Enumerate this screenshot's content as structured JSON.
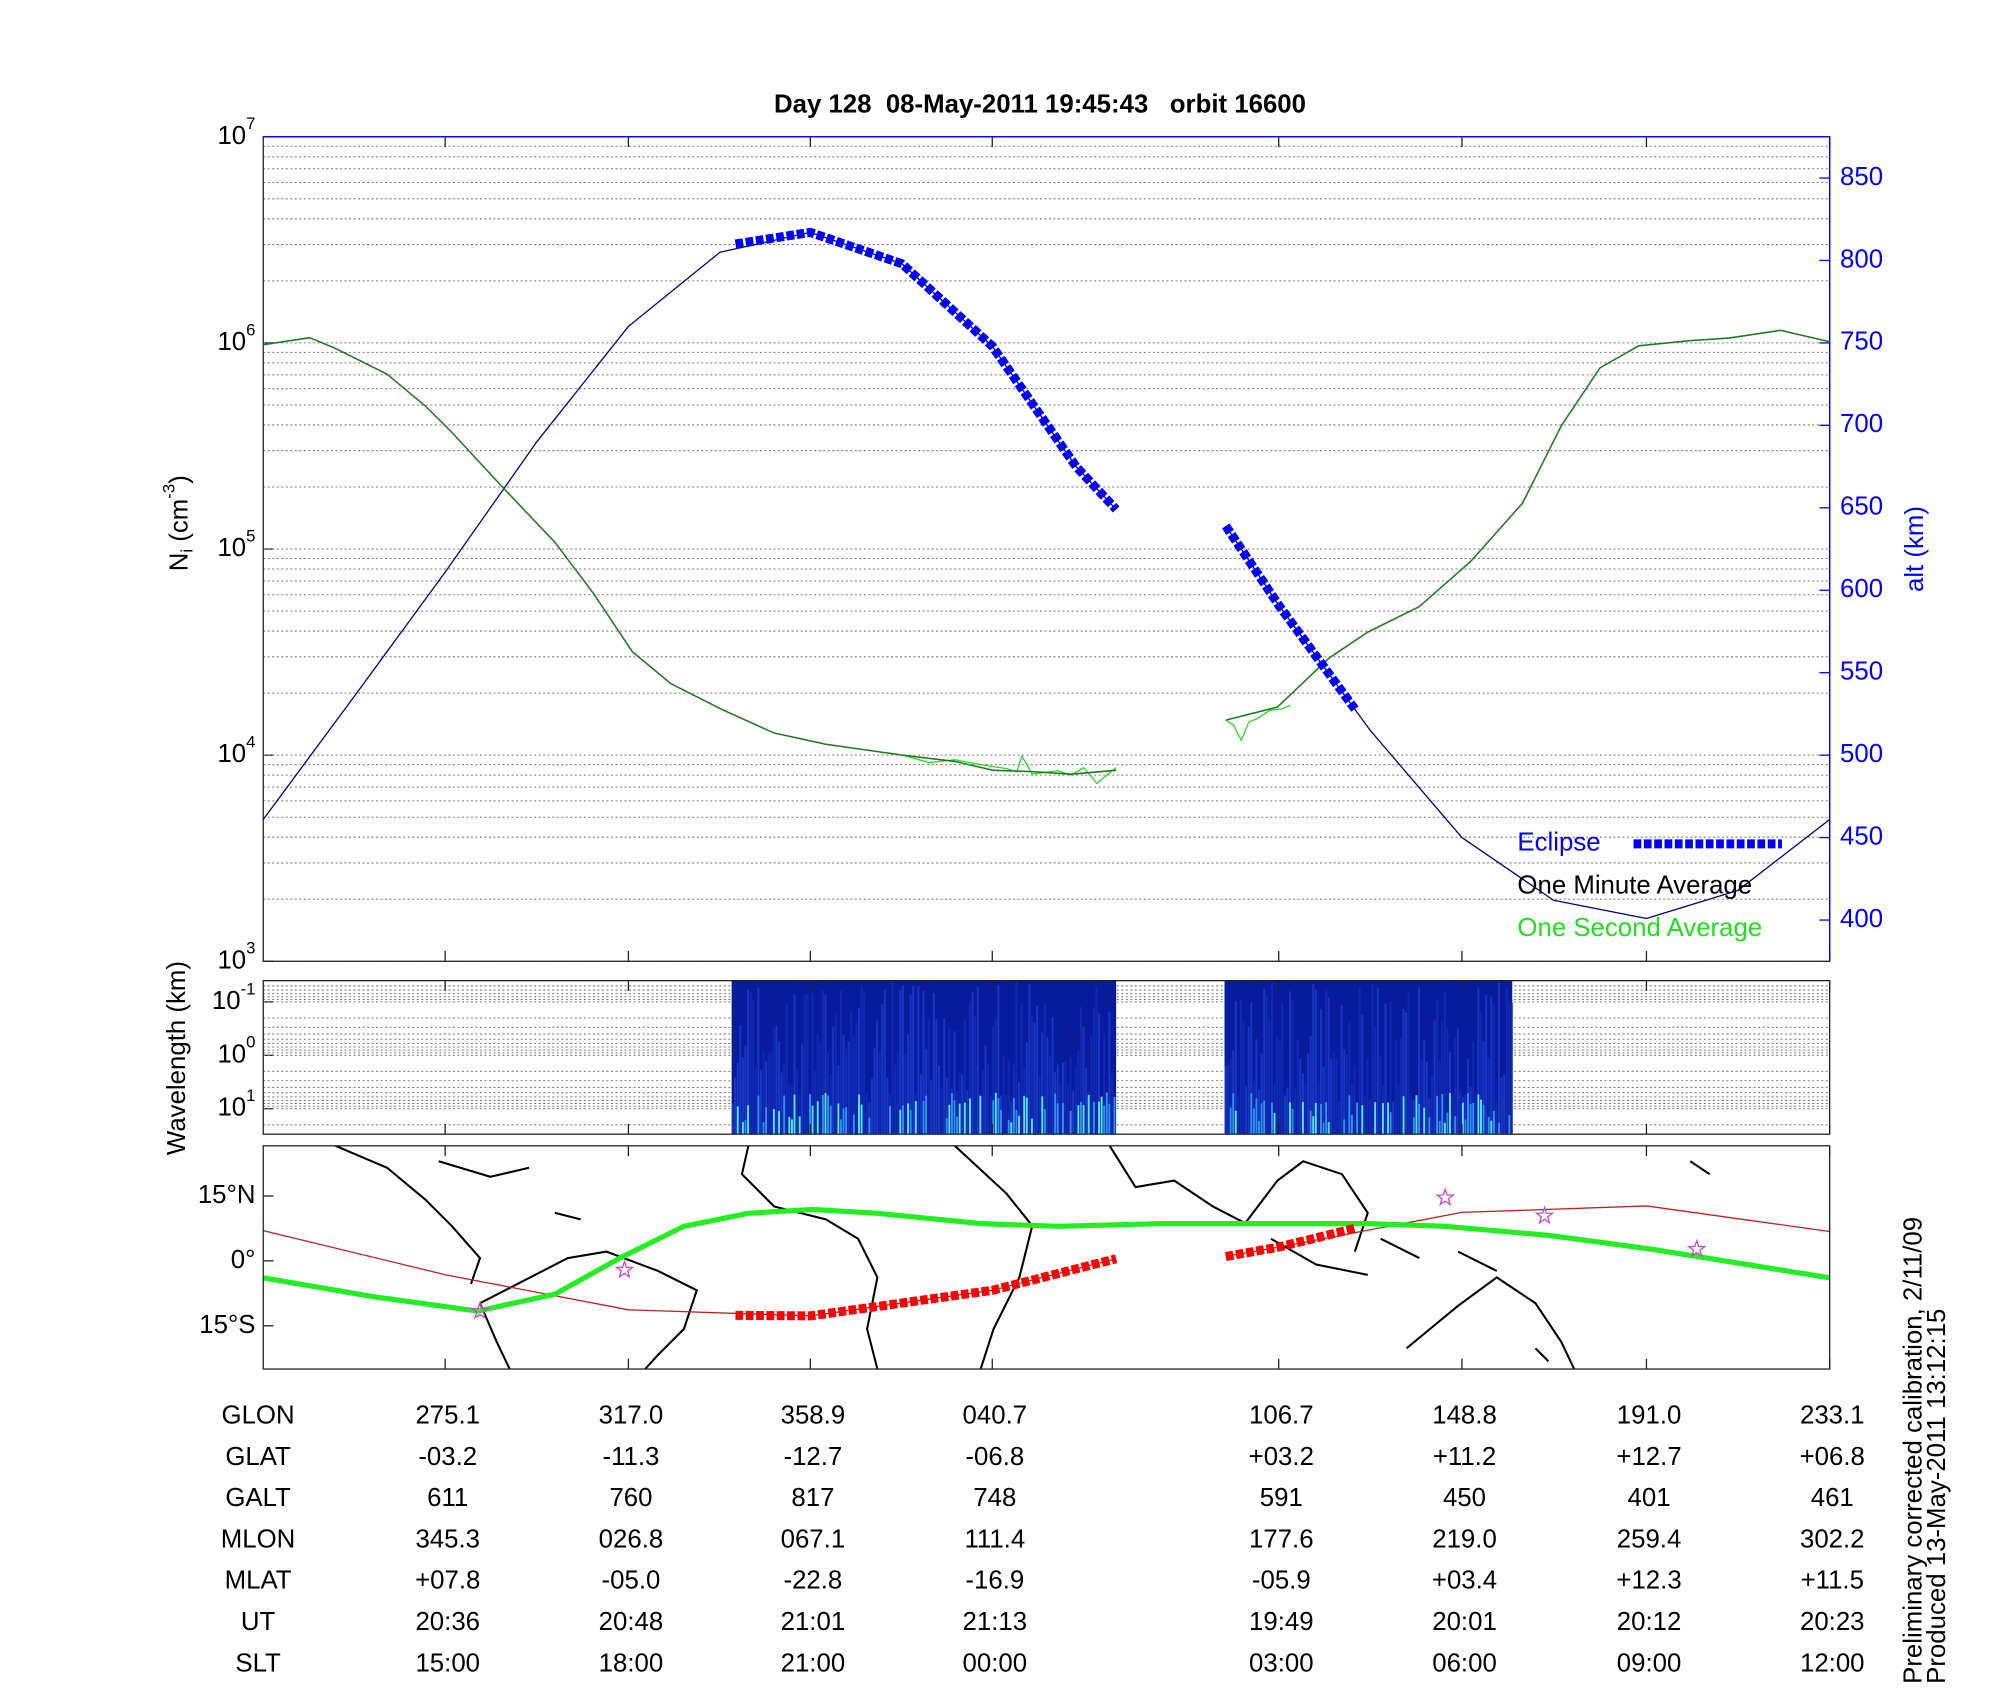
{
  "chart_data": [
    {
      "type": "line",
      "title": "Day 128  08-May-2011 19:45:43   orbit 16600",
      "ylabel": {
        "text": "N",
        "sub": "i",
        "unit": " (cm",
        "sup": "-3",
        "end": ")"
      },
      "y2label": "alt (km)",
      "log": true,
      "grid": true,
      "legend": "lower right",
      "xlim": [
        0,
        1214
      ],
      "xticks": [
        141,
        283,
        424,
        565,
        787,
        929,
        1072,
        1214
      ],
      "ylim": [
        1000,
        10000000
      ],
      "yticks": [
        {
          "value": 1000,
          "label": "10",
          "exponent": "3"
        },
        {
          "value": 10000,
          "label": "10",
          "exponent": "4"
        },
        {
          "value": 100000,
          "label": "10",
          "exponent": "5"
        },
        {
          "value": 1000000,
          "label": "10",
          "exponent": "6"
        },
        {
          "value": 10000000,
          "label": "10",
          "exponent": "7"
        }
      ],
      "y2lim": [
        375,
        875
      ],
      "y2ticks": [
        400,
        450,
        500,
        550,
        600,
        650,
        700,
        750,
        800,
        850
      ],
      "y2color": "#0000ff",
      "series": [
        {
          "name": "Eclipse",
          "color": "#0000ff",
          "text_color": "#0000ff",
          "style": "dashed",
          "linewidth": 7,
          "axis": "y2",
          "x": [
            366,
            424,
            495,
            565,
            630,
            661,
            700,
            746,
            787,
            846
          ],
          "values": [
            810,
            817,
            798,
            748,
            675,
            649,
            null,
            639,
            591,
            528
          ]
        },
        {
          "name": "One Minute Average",
          "color": "#1f7a1f",
          "text_color": "#000000",
          "linewidth": 1.2,
          "x": [
            0,
            36,
            56,
            96,
            126,
            146,
            186,
            226,
            256,
            286,
            316,
            356,
            396,
            436,
            496,
            536,
            566,
            596,
            626,
            661,
            700,
            746,
            786,
            826,
            856,
            896,
            936,
            976,
            1006,
            1036,
            1066,
            1106,
            1136,
            1176,
            1214
          ],
          "values": [
            980000,
            1060000,
            940000,
            705000,
            492000,
            369000,
            198000,
            108000,
            60800,
            31800,
            22200,
            16600,
            12800,
            11300,
            10000,
            9330,
            8440,
            8320,
            8090,
            8440,
            null,
            14800,
            17100,
            29600,
            39500,
            52600,
            87300,
            167000,
            396000,
            757000,
            968000,
            1026000,
            1056000,
            1151000,
            1012000
          ]
        },
        {
          "name": "One Second Average",
          "color": "#22dd22",
          "text_color": "#22dd22",
          "linewidth": 1,
          "x": [
            496,
            516,
            536,
            556,
            576,
            584,
            588,
            596,
            616,
            626,
            636,
            646,
            656,
            661,
            700,
            746,
            752,
            758,
            764,
            770,
            780,
            790,
            796
          ],
          "values": [
            10000,
            9200,
            9500,
            9000,
            8600,
            8300,
            9900,
            8100,
            8400,
            8000,
            8700,
            7300,
            8200,
            8700,
            null,
            14800,
            14000,
            11800,
            14500,
            15000,
            16500,
            16800,
            17500
          ]
        },
        {
          "color": "#00008b",
          "linewidth": 1,
          "axis": "y2",
          "x": [
            0,
            70,
            141,
            212,
            283,
            354,
            424,
            495,
            565,
            630,
            661,
            700,
            746,
            787,
            858,
            929,
            1000,
            1072,
            1143,
            1214
          ],
          "values": [
            461,
            535,
            611,
            690,
            760,
            805,
            817,
            798,
            748,
            675,
            649,
            null,
            639,
            591,
            515,
            450,
            412,
            401,
            418,
            461
          ]
        }
      ]
    },
    {
      "type": "spectrogram",
      "ylabel": "Wavelength (km)",
      "log": true,
      "grid": true,
      "xlim": [
        0,
        1214
      ],
      "xticks": [
        141,
        283,
        424,
        565,
        787,
        929,
        1072,
        1214
      ],
      "ylim": [
        30,
        0.04
      ],
      "yticks": [
        {
          "value": 0.1,
          "label": "10",
          "exponent": "-1"
        },
        {
          "value": 1,
          "label": "10",
          "exponent": "0"
        },
        {
          "value": 10,
          "label": "10",
          "exponent": "1"
        }
      ],
      "x_ranges": [
        [
          363,
          661
        ],
        [
          745,
          968
        ]
      ]
    },
    {
      "type": "map",
      "xlim": [
        0,
        1214
      ],
      "xticks": [
        141,
        283,
        424,
        565,
        787,
        929,
        1072,
        1214
      ],
      "ylim": [
        -25,
        26.6
      ],
      "yticks": [
        {
          "value": 15,
          "label": "15°N"
        },
        {
          "value": 0,
          "label": "0°"
        },
        {
          "value": -15,
          "label": "15°S"
        }
      ],
      "series": [
        {
          "color": "#bb2222",
          "linewidth": 1,
          "x": [
            0,
            141,
            283,
            424,
            565,
            661,
            700,
            746,
            787,
            929,
            1072,
            1214
          ],
          "values": [
            7.0,
            -3.2,
            -11.3,
            -12.7,
            -6.8,
            0.5,
            null,
            1.0,
            3.2,
            11.2,
            12.7,
            6.8
          ]
        },
        {
          "color": "#22ee22",
          "linewidth": 4,
          "x": [
            0,
            86,
            166,
            226,
            276,
            326,
            376,
            426,
            476,
            556,
            616,
            696,
            756,
            856,
            916,
            996,
            1076,
            1214
          ],
          "values": [
            -3.9,
            -8.3,
            -11.6,
            -7.7,
            0.6,
            8.0,
            11.0,
            11.9,
            11.0,
            8.6,
            8.0,
            8.6,
            8.6,
            8.6,
            8.0,
            5.9,
            2.7,
            -3.9
          ]
        },
        {
          "color": "#ff0000",
          "style": "dashed",
          "linewidth": 7,
          "x": [
            366,
            424,
            565,
            661,
            700,
            746,
            787,
            846
          ],
          "values": [
            -12.6,
            -12.7,
            -6.8,
            0.5,
            null,
            1.0,
            3.2,
            7.5
          ]
        }
      ],
      "markers": {
        "color": "#cc44cc",
        "x": [
          168,
          280,
          916,
          993,
          1111
        ],
        "values": [
          -11.6,
          -2.1,
          14.6,
          10.4,
          2.7
        ]
      }
    }
  ],
  "table": {
    "rows": [
      {
        "label": "GLON",
        "values": [
          "275.1",
          "317.0",
          "358.9",
          "040.7",
          "106.7",
          "148.8",
          "191.0",
          "233.1"
        ]
      },
      {
        "label": "GLAT",
        "values": [
          "-03.2",
          "-11.3",
          "-12.7",
          "-06.8",
          "+03.2",
          "+11.2",
          "+12.7",
          "+06.8"
        ]
      },
      {
        "label": "GALT",
        "values": [
          "611",
          "760",
          "817",
          "748",
          "591",
          "450",
          "401",
          "461"
        ]
      },
      {
        "label": "MLON",
        "values": [
          "345.3",
          "026.8",
          "067.1",
          "111.4",
          "177.6",
          "219.0",
          "259.4",
          "302.2"
        ]
      },
      {
        "label": "MLAT",
        "values": [
          "+07.8",
          "-05.0",
          "-22.8",
          "-16.9",
          "-05.9",
          "+03.4",
          "+12.3",
          "+11.5"
        ]
      },
      {
        "label": "UT",
        "values": [
          "20:36",
          "20:48",
          "21:01",
          "21:13",
          "19:49",
          "20:01",
          "20:12",
          "20:23"
        ]
      },
      {
        "label": "SLT",
        "values": [
          "15:00",
          "18:00",
          "21:00",
          "00:00",
          "03:00",
          "06:00",
          "09:00",
          "12:00"
        ]
      }
    ]
  },
  "notes": [
    "Preliminary corrected calibration, 2/11/09",
    "Produced 13-May-2011 13:12:15"
  ]
}
